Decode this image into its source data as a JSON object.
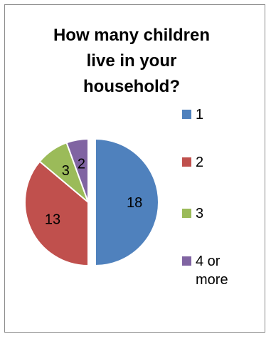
{
  "chart_data": {
    "type": "pie",
    "title": "How many children live in your household?",
    "categories": [
      "1",
      "2",
      "3",
      "4 or more"
    ],
    "values": [
      18,
      13,
      3,
      2
    ],
    "colors": [
      "#4f81bd",
      "#c0504d",
      "#9bbb59",
      "#8064a2"
    ],
    "legend_position": "right",
    "exploded_slice": "1"
  }
}
